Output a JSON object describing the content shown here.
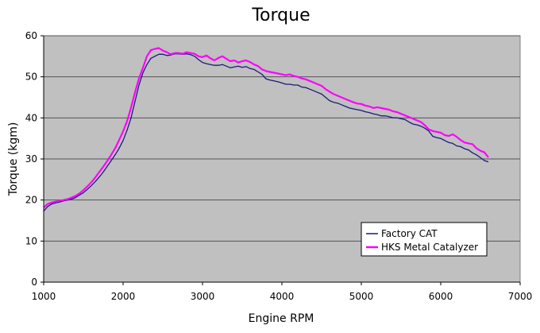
{
  "chart_data": {
    "type": "line",
    "title": "Torque",
    "xlabel": "Engine RPM",
    "ylabel": "Torque (kgm)",
    "xlim": [
      1000,
      7000
    ],
    "ylim": [
      0,
      60
    ],
    "xticks": [
      1000,
      2000,
      3000,
      4000,
      5000,
      6000,
      7000
    ],
    "yticks": [
      0,
      10,
      20,
      30,
      40,
      50,
      60
    ],
    "grid": "horizontal",
    "legend_position": "bottom-right",
    "series": [
      {
        "name": "Factory CAT",
        "color": "#1a1a7a",
        "x": [
          1000,
          1050,
          1100,
          1150,
          1200,
          1250,
          1300,
          1350,
          1400,
          1450,
          1500,
          1550,
          1600,
          1650,
          1700,
          1750,
          1800,
          1850,
          1900,
          1950,
          2000,
          2050,
          2100,
          2150,
          2200,
          2250,
          2300,
          2350,
          2400,
          2450,
          2500,
          2550,
          2600,
          2650,
          2700,
          2750,
          2800,
          2850,
          2900,
          2950,
          3000,
          3050,
          3100,
          3150,
          3200,
          3250,
          3300,
          3350,
          3400,
          3450,
          3500,
          3550,
          3600,
          3650,
          3700,
          3750,
          3800,
          3850,
          3900,
          3950,
          4000,
          4050,
          4100,
          4150,
          4200,
          4250,
          4300,
          4350,
          4400,
          4450,
          4500,
          4550,
          4600,
          4650,
          4700,
          4750,
          4800,
          4850,
          4900,
          4950,
          5000,
          5050,
          5100,
          5150,
          5200,
          5250,
          5300,
          5350,
          5400,
          5450,
          5500,
          5550,
          5600,
          5650,
          5700,
          5750,
          5800,
          5850,
          5900,
          5950,
          6000,
          6050,
          6100,
          6150,
          6200,
          6250,
          6300,
          6350,
          6400,
          6450,
          6500,
          6550,
          6600
        ],
        "values": [
          17.3,
          18.4,
          19.0,
          19.3,
          19.5,
          19.8,
          20.0,
          20.2,
          20.6,
          21.2,
          21.8,
          22.6,
          23.5,
          24.5,
          25.6,
          26.8,
          28.2,
          29.6,
          31.0,
          32.6,
          34.5,
          37.0,
          40.0,
          44.0,
          48.0,
          51.0,
          53.0,
          54.5,
          55.0,
          55.5,
          55.5,
          55.2,
          55.3,
          55.6,
          55.6,
          55.5,
          55.6,
          55.4,
          55.0,
          54.2,
          53.5,
          53.2,
          53.0,
          52.8,
          52.8,
          53.0,
          52.6,
          52.2,
          52.4,
          52.6,
          52.3,
          52.5,
          52.0,
          51.8,
          51.2,
          50.6,
          49.5,
          49.2,
          49.0,
          48.8,
          48.5,
          48.2,
          48.2,
          48.0,
          48.0,
          47.5,
          47.4,
          47.0,
          46.6,
          46.2,
          45.8,
          45.0,
          44.2,
          43.8,
          43.6,
          43.2,
          42.8,
          42.4,
          42.2,
          42.0,
          41.8,
          41.5,
          41.3,
          41.0,
          40.8,
          40.5,
          40.5,
          40.3,
          40.0,
          40.0,
          39.8,
          39.6,
          39.0,
          38.5,
          38.3,
          38.0,
          37.5,
          36.8,
          35.5,
          35.2,
          35.0,
          34.5,
          34.0,
          33.8,
          33.2,
          33.0,
          32.5,
          32.2,
          31.5,
          31.0,
          30.3,
          29.6,
          29.3
        ]
      },
      {
        "name": "HKS Metal Catalyzer",
        "color": "#ff00ff",
        "x": [
          1000,
          1050,
          1100,
          1150,
          1200,
          1250,
          1300,
          1350,
          1400,
          1450,
          1500,
          1550,
          1600,
          1650,
          1700,
          1750,
          1800,
          1850,
          1900,
          1950,
          2000,
          2050,
          2100,
          2150,
          2200,
          2250,
          2300,
          2350,
          2400,
          2450,
          2500,
          2550,
          2600,
          2650,
          2700,
          2750,
          2800,
          2850,
          2900,
          2950,
          3000,
          3050,
          3100,
          3150,
          3200,
          3250,
          3300,
          3350,
          3400,
          3450,
          3500,
          3550,
          3600,
          3650,
          3700,
          3750,
          3800,
          3850,
          3900,
          3950,
          4000,
          4050,
          4100,
          4150,
          4200,
          4250,
          4300,
          4350,
          4400,
          4450,
          4500,
          4550,
          4600,
          4650,
          4700,
          4750,
          4800,
          4850,
          4900,
          4950,
          5000,
          5050,
          5100,
          5150,
          5200,
          5250,
          5300,
          5350,
          5400,
          5450,
          5500,
          5550,
          5600,
          5650,
          5700,
          5750,
          5800,
          5850,
          5900,
          5950,
          6000,
          6050,
          6100,
          6150,
          6200,
          6250,
          6300,
          6350,
          6400,
          6450,
          6500,
          6550,
          6600
        ],
        "values": [
          18.2,
          19.0,
          19.4,
          19.6,
          19.8,
          20.0,
          20.2,
          20.6,
          21.0,
          21.6,
          22.4,
          23.3,
          24.3,
          25.5,
          26.8,
          28.1,
          29.5,
          31.0,
          32.6,
          34.6,
          36.7,
          39.2,
          42.5,
          46.2,
          49.6,
          52.2,
          55.0,
          56.5,
          56.8,
          57.0,
          56.4,
          56.0,
          55.5,
          55.8,
          55.8,
          55.6,
          56.0,
          55.8,
          55.6,
          55.0,
          54.8,
          55.2,
          54.5,
          54.0,
          54.6,
          55.0,
          54.4,
          53.8,
          54.0,
          53.5,
          53.8,
          54.0,
          53.6,
          53.0,
          52.6,
          51.8,
          51.4,
          51.2,
          51.0,
          50.8,
          50.6,
          50.4,
          50.6,
          50.2,
          50.0,
          49.6,
          49.4,
          49.0,
          48.6,
          48.2,
          47.8,
          47.0,
          46.4,
          45.8,
          45.4,
          45.0,
          44.6,
          44.2,
          43.8,
          43.5,
          43.4,
          43.0,
          42.8,
          42.4,
          42.6,
          42.4,
          42.2,
          42.0,
          41.6,
          41.4,
          41.0,
          40.6,
          40.2,
          39.8,
          39.4,
          39.0,
          38.2,
          37.2,
          36.8,
          36.6,
          36.4,
          35.8,
          35.6,
          36.0,
          35.4,
          34.6,
          34.0,
          33.8,
          33.6,
          32.6,
          32.0,
          31.6,
          30.4
        ]
      }
    ]
  }
}
